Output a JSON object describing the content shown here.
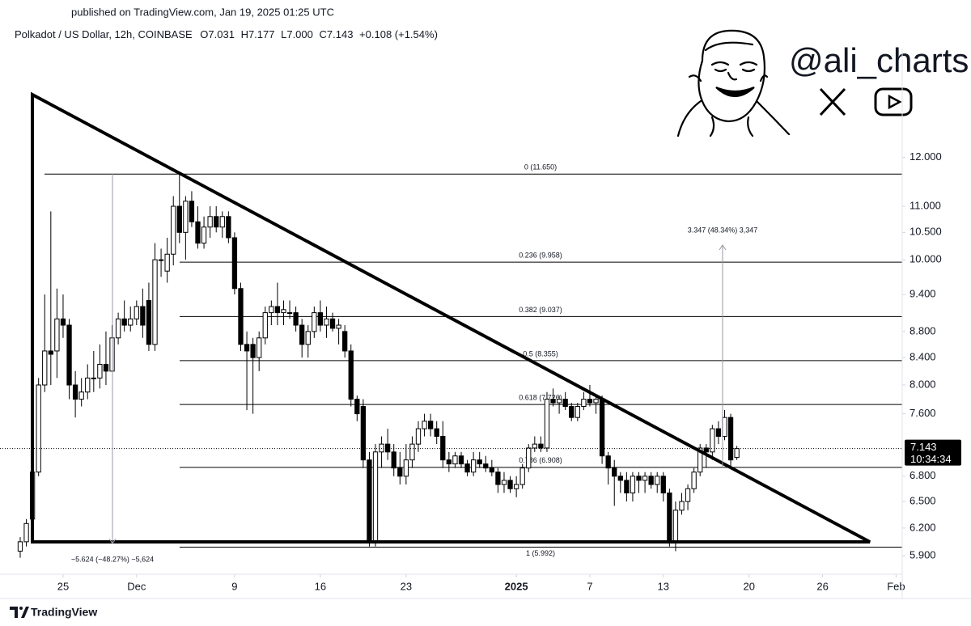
{
  "header": {
    "published": "published on TradingView.com, Jan 19, 2025 01:25 UTC",
    "symbol": "Polkadot / US Dollar, 12h, COINBASE",
    "ohlc": [
      "O7.031",
      "H7.177",
      "L7.000",
      "C7.143",
      "+0.108 (+1.54%)"
    ]
  },
  "branding": {
    "handle": "@ali_charts",
    "footer": "TradingView"
  },
  "chart_data": {
    "type": "candlestick",
    "log_scale": true,
    "up_color": "#ffffff",
    "down_color": "#000000",
    "xlim": [
      -3.3,
      144
    ],
    "ylim": [
      5.71,
      14.57
    ],
    "xticks": [
      {
        "value": 7,
        "label": "25"
      },
      {
        "value": 19,
        "label": "Dec"
      },
      {
        "value": 35,
        "label": "9"
      },
      {
        "value": 49,
        "label": "16"
      },
      {
        "value": 63,
        "label": "23"
      },
      {
        "value": 81,
        "label": "2025"
      },
      {
        "value": 93,
        "label": "7"
      },
      {
        "value": 105,
        "label": "13"
      },
      {
        "value": 119,
        "label": "20"
      },
      {
        "value": 131,
        "label": "26"
      },
      {
        "value": 143,
        "label": "Feb"
      }
    ],
    "yticks": [
      {
        "value": 12,
        "label": "12.000"
      },
      {
        "value": 11,
        "label": "11.000"
      },
      {
        "value": 10.5,
        "label": "10.500"
      },
      {
        "value": 10,
        "label": "10.000"
      },
      {
        "value": 9.4,
        "label": "9.400"
      },
      {
        "value": 8.8,
        "label": "8.800"
      },
      {
        "value": 8.4,
        "label": "8.400"
      },
      {
        "value": 8,
        "label": "8.000"
      },
      {
        "value": 7.6,
        "label": "7.600"
      },
      {
        "value": 6.8,
        "label": "6.800"
      },
      {
        "value": 6.5,
        "label": "6.500"
      },
      {
        "value": 6.2,
        "label": "6.200"
      },
      {
        "value": 5.9,
        "label": "5.900"
      }
    ],
    "fib_levels": [
      {
        "label": "0 (11.650)",
        "value": 11.65
      },
      {
        "label": "0.236 (9.958)",
        "value": 9.958
      },
      {
        "label": "0.382 (9.037)",
        "value": 9.037
      },
      {
        "label": "0.5 (8.355)",
        "value": 8.355
      },
      {
        "label": "0.618 (7.726)",
        "value": 7.726
      },
      {
        "label": "0.786 (6.908)",
        "value": 6.908
      },
      {
        "label": "1 (5.992)",
        "value": 5.992
      }
    ],
    "annotations": [
      "3.347 (48.34%) 3,347",
      "−5.624 (−48.27%) −5,624"
    ],
    "last_price": 7.143,
    "countdown": "10:34:34",
    "open": [
      5.95,
      6.05,
      6.3,
      6.85,
      8.0,
      8.5,
      8.5,
      9.0,
      8.9,
      8.0,
      7.8,
      7.9,
      8.1,
      8.1,
      8.3,
      8.2,
      8.7,
      9.0,
      8.9,
      9.0,
      9.2,
      9.3,
      8.6,
      10.0,
      9.8,
      10.1,
      11.0,
      10.5,
      11.1,
      10.7,
      10.3,
      10.6,
      10.8,
      10.6,
      10.8,
      10.4,
      9.5,
      8.6,
      8.6,
      8.4,
      8.7,
      9.1,
      9.2,
      9.1,
      9.1,
      9.1,
      8.9,
      8.6,
      8.8,
      9.1,
      8.9,
      9.0,
      8.85,
      8.8,
      8.5,
      7.8,
      7.7,
      7.0,
      6.05,
      7.1,
      7.2,
      7.1,
      6.9,
      6.8,
      7.0,
      7.2,
      7.4,
      7.5,
      7.4,
      7.3,
      7.0,
      6.95,
      7.05,
      6.95,
      6.85,
      7.0,
      6.95,
      6.9,
      6.85,
      6.7,
      6.75,
      6.65,
      6.7,
      6.9,
      7.15,
      7.2,
      7.15,
      7.8,
      7.75,
      7.8,
      7.7,
      7.55,
      7.7,
      7.8,
      7.75,
      7.8,
      7.05,
      6.9,
      6.8,
      6.75,
      6.6,
      6.8,
      6.75,
      6.8,
      6.7,
      6.8,
      6.6,
      6.05,
      6.4,
      6.5,
      6.65,
      6.85,
      7.15,
      7.1,
      7.4,
      7.3,
      7.55,
      7.031
    ],
    "high": [
      6.1,
      6.3,
      6.9,
      8.1,
      9.4,
      10.9,
      9.5,
      9.4,
      9.0,
      8.2,
      8.1,
      8.3,
      8.5,
      8.6,
      8.8,
      8.9,
      9.1,
      9.3,
      9.2,
      9.3,
      9.5,
      9.6,
      10.3,
      10.2,
      10.4,
      11.2,
      11.7,
      11.2,
      11.3,
      11.0,
      10.8,
      11.0,
      11.0,
      10.9,
      10.9,
      10.5,
      9.6,
      8.8,
      8.7,
      8.8,
      9.2,
      9.3,
      9.6,
      9.3,
      9.3,
      9.2,
      9.0,
      8.9,
      9.2,
      9.3,
      9.2,
      9.1,
      9.0,
      8.9,
      8.6,
      7.85,
      7.8,
      7.1,
      7.2,
      7.3,
      7.4,
      7.2,
      7.1,
      7.2,
      7.3,
      7.5,
      7.6,
      7.6,
      7.5,
      7.5,
      7.1,
      7.1,
      7.1,
      7.0,
      7.1,
      7.1,
      7.05,
      7.0,
      6.9,
      6.85,
      6.8,
      6.8,
      6.95,
      7.2,
      7.3,
      7.3,
      7.9,
      7.95,
      7.85,
      7.9,
      7.75,
      7.75,
      7.9,
      8.0,
      7.85,
      7.85,
      7.1,
      7.0,
      6.85,
      6.85,
      6.85,
      6.85,
      6.85,
      6.85,
      6.85,
      6.85,
      6.65,
      6.5,
      6.6,
      6.7,
      6.9,
      7.2,
      7.2,
      7.45,
      7.5,
      7.65,
      7.6,
      7.177
    ],
    "low": [
      5.88,
      6.0,
      6.2,
      6.8,
      7.9,
      8.0,
      8.1,
      8.7,
      7.8,
      7.55,
      7.7,
      7.8,
      7.9,
      7.95,
      8.0,
      8.2,
      8.6,
      8.8,
      8.8,
      8.9,
      8.7,
      8.5,
      8.5,
      9.7,
      9.6,
      9.9,
      10.3,
      10.0,
      10.6,
      10.2,
      10.2,
      10.4,
      10.5,
      10.4,
      10.3,
      9.4,
      8.5,
      7.65,
      7.6,
      8.2,
      8.6,
      8.9,
      8.9,
      8.9,
      9.0,
      8.8,
      8.4,
      8.4,
      8.7,
      8.8,
      8.7,
      8.8,
      8.6,
      8.4,
      7.7,
      7.5,
      6.9,
      6.0,
      6.0,
      6.9,
      7.0,
      6.8,
      6.7,
      6.7,
      6.9,
      7.1,
      7.3,
      7.3,
      7.2,
      6.9,
      6.85,
      6.9,
      6.9,
      6.8,
      6.8,
      6.9,
      6.85,
      6.8,
      6.6,
      6.6,
      6.6,
      6.55,
      6.65,
      6.85,
      7.1,
      7.1,
      7.1,
      7.7,
      7.6,
      7.65,
      7.5,
      7.5,
      7.65,
      7.7,
      7.6,
      6.95,
      6.7,
      6.45,
      6.6,
      6.5,
      6.5,
      6.6,
      6.6,
      6.65,
      6.6,
      6.5,
      6.0,
      5.95,
      6.35,
      6.4,
      6.6,
      6.8,
      6.9,
      7.0,
      7.2,
      7.25,
      6.9,
      7.0
    ],
    "close": [
      6.05,
      6.25,
      6.85,
      8.0,
      8.5,
      8.45,
      9.0,
      8.9,
      8.0,
      7.8,
      7.9,
      8.1,
      8.1,
      8.3,
      8.2,
      8.7,
      9.0,
      8.9,
      9.0,
      9.2,
      8.9,
      8.6,
      10.0,
      10.0,
      10.1,
      11.0,
      10.5,
      11.1,
      10.7,
      10.3,
      10.6,
      10.8,
      10.6,
      10.8,
      10.4,
      9.5,
      8.6,
      8.5,
      8.4,
      8.7,
      9.1,
      9.2,
      9.1,
      9.15,
      9.1,
      8.9,
      8.6,
      8.8,
      9.1,
      8.9,
      9.0,
      8.85,
      8.9,
      8.5,
      7.8,
      7.6,
      7.0,
      6.05,
      7.1,
      7.2,
      7.1,
      6.9,
      6.8,
      7.0,
      7.2,
      7.4,
      7.5,
      7.4,
      7.3,
      7.0,
      6.95,
      7.05,
      6.95,
      6.85,
      7.0,
      6.95,
      6.9,
      6.85,
      6.7,
      6.75,
      6.65,
      6.7,
      6.9,
      7.15,
      7.2,
      7.15,
      7.8,
      7.75,
      7.8,
      7.7,
      7.55,
      7.7,
      7.8,
      7.75,
      7.8,
      7.05,
      6.9,
      6.8,
      6.75,
      6.6,
      6.8,
      6.75,
      6.8,
      6.7,
      6.8,
      6.6,
      6.05,
      6.4,
      6.5,
      6.65,
      6.85,
      7.15,
      7.1,
      7.4,
      7.3,
      7.55,
      7.0,
      7.143
    ]
  }
}
